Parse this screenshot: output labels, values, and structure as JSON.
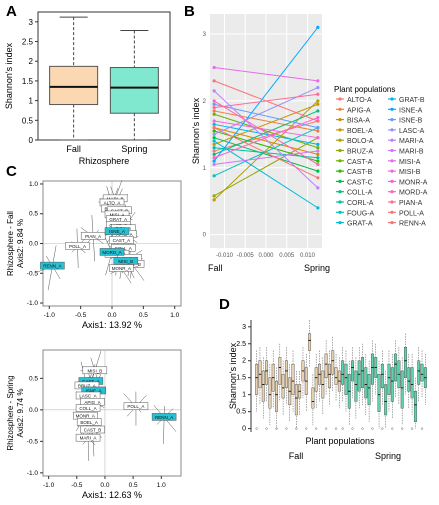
{
  "panels": {
    "A": "A",
    "B": "B",
    "C": "C",
    "D": "D"
  },
  "chart_data": [
    {
      "panel": "A",
      "type": "box",
      "xlabel": "Rhizosphere",
      "ylabel": "Shannon's index",
      "ylim": [
        0,
        3.25
      ],
      "yticks": [
        "0",
        "0.5",
        "1",
        "1.5",
        "2",
        "2.5",
        "3"
      ],
      "categories": [
        "Fall",
        "Spring"
      ],
      "boxes": [
        {
          "name": "Fall",
          "min": 0.0,
          "q1": 0.9,
          "median": 1.35,
          "q3": 1.87,
          "max": 3.12,
          "color": "#fbd8b2"
        },
        {
          "name": "Spring",
          "min": 0.0,
          "q1": 0.68,
          "median": 1.33,
          "q3": 1.84,
          "max": 2.78,
          "color": "#7fe8cf"
        }
      ]
    },
    {
      "panel": "B",
      "type": "line",
      "ylabel": "Shannon's index",
      "xlabel_left": "Fall",
      "xlabel_right": "Spring",
      "xticks": [
        "-0.010",
        "-0.005",
        "0.000",
        "0.005",
        "0.010"
      ],
      "yticks": [
        "0",
        "1",
        "2",
        "3"
      ],
      "xlim": [
        -0.0135,
        0.0135
      ],
      "ylim": [
        -0.2,
        3.3
      ],
      "legend_title": "Plant populations",
      "legend_placement": "right",
      "grid": true,
      "series": [
        {
          "name": "ALTO-A",
          "color": "#f8766d",
          "values": [
            1.25,
            1.7
          ]
        },
        {
          "name": "APIG-A",
          "color": "#ee7e3a",
          "values": [
            1.85,
            1.55
          ]
        },
        {
          "name": "BISA-A",
          "color": "#d98b00",
          "values": [
            1.6,
            1.2
          ]
        },
        {
          "name": "BOEL-A",
          "color": "#c79700",
          "values": [
            1.35,
            1.95
          ]
        },
        {
          "name": "BOLO-A",
          "color": "#b0a000",
          "values": [
            0.52,
            2.0
          ]
        },
        {
          "name": "BRUZ-A",
          "color": "#93a900",
          "values": [
            0.58,
            1.45
          ]
        },
        {
          "name": "CAST-A",
          "color": "#6db100",
          "values": [
            1.8,
            1.3
          ]
        },
        {
          "name": "CAST-B",
          "color": "#2bb800",
          "values": [
            1.55,
            1.1
          ]
        },
        {
          "name": "CAST-C",
          "color": "#00bb4e",
          "values": [
            1.45,
            0.95
          ]
        },
        {
          "name": "COLL-A",
          "color": "#00bf7d",
          "values": [
            1.2,
            1.85
          ]
        },
        {
          "name": "CORL-A",
          "color": "#00c0a0",
          "values": [
            1.3,
            1.15
          ]
        },
        {
          "name": "FOUG-A",
          "color": "#00c1be",
          "values": [
            0.88,
            1.6
          ]
        },
        {
          "name": "GRAT-A",
          "color": "#00bcd8",
          "values": [
            1.4,
            0.4
          ]
        },
        {
          "name": "GRAT-B",
          "color": "#00b5ee",
          "values": [
            1.65,
            1.35
          ]
        },
        {
          "name": "ISNE-A",
          "color": "#00a9ff",
          "values": [
            1.1,
            3.1
          ]
        },
        {
          "name": "ISNE-B",
          "color": "#619cff",
          "values": [
            1.95,
            1.6
          ]
        },
        {
          "name": "LASC-A",
          "color": "#9590ff",
          "values": [
            1.5,
            2.2
          ]
        },
        {
          "name": "MARI-A",
          "color": "#b983ff",
          "values": [
            2.15,
            0.7
          ]
        },
        {
          "name": "MARI-B",
          "color": "#d574fe",
          "values": [
            1.05,
            1.25
          ]
        },
        {
          "name": "MISI-A",
          "color": "#e86aee",
          "values": [
            2.5,
            2.3
          ]
        },
        {
          "name": "MISI-B",
          "color": "#f564e3",
          "values": [
            1.7,
            1.45
          ]
        },
        {
          "name": "MONR-A",
          "color": "#fd61d1",
          "values": [
            1.15,
            1.75
          ]
        },
        {
          "name": "MORD-A",
          "color": "#ff64b7",
          "values": [
            2.0,
            1.05
          ]
        },
        {
          "name": "PIAN-A",
          "color": "#ff6c99",
          "values": [
            1.9,
            2.1
          ]
        },
        {
          "name": "POLL-A",
          "color": "#fd7279",
          "values": [
            2.3,
            1.7
          ]
        },
        {
          "name": "RENN-A",
          "color": "#f77570",
          "values": [
            1.6,
            0.85
          ]
        }
      ]
    },
    {
      "panel": "C-fall",
      "type": "scatter",
      "title": "Rhizosphere - Fall",
      "xlabel": "Axis1: 13.92 %",
      "ylabel": "Axis2: 9.84 %",
      "xlim": [
        -1.1,
        1.1
      ],
      "ylim": [
        -1.05,
        1.05
      ],
      "xticks": [
        "-1.0",
        "-0.5",
        "0.0",
        "0.5",
        "1.0"
      ],
      "yticks": [
        "-1.0",
        "-0.5",
        "0.0",
        "0.5",
        "1.0"
      ],
      "points": [
        {
          "label": "MARI_B",
          "x": 0.05,
          "y": 0.75
        },
        {
          "label": "ALTO_A",
          "x": 0.0,
          "y": 0.68
        },
        {
          "label": "BOEL_A",
          "x": 0.02,
          "y": 0.58
        },
        {
          "label": "CAST_B",
          "x": 0.12,
          "y": 0.55
        },
        {
          "label": "MISI_A",
          "x": 0.08,
          "y": 0.48
        },
        {
          "label": "GRAT_A",
          "x": 0.1,
          "y": 0.4
        },
        {
          "label": "CAST_C",
          "x": 0.1,
          "y": 0.3
        },
        {
          "label": "BISA_A",
          "x": 0.18,
          "y": 0.25
        },
        {
          "label": "APIG_A",
          "x": 0.2,
          "y": 0.15
        },
        {
          "label": "PIAN_A",
          "x": -0.3,
          "y": 0.12
        },
        {
          "label": "POLL_A",
          "x": -0.55,
          "y": -0.05
        },
        {
          "label": "CAST_A",
          "x": 0.15,
          "y": 0.05
        },
        {
          "label": "COLL_A",
          "x": 0.18,
          "y": -0.08
        },
        {
          "label": "BRUZ_A",
          "x": 0.08,
          "y": -0.18
        },
        {
          "label": "ISNE_B",
          "x": 0.28,
          "y": -0.25
        },
        {
          "label": "GRAT_B",
          "x": 0.32,
          "y": -0.35
        },
        {
          "label": "MONR_A",
          "x": 0.15,
          "y": -0.42
        },
        {
          "label": "RENN_A",
          "x": -0.95,
          "y": -0.38,
          "highlight": true
        },
        {
          "label": "ISNE_A",
          "x": 0.08,
          "y": 0.2,
          "highlight": true
        },
        {
          "label": "MISI_B",
          "x": 0.22,
          "y": -0.3,
          "highlight": true
        },
        {
          "label": "MORD_A",
          "x": 0.0,
          "y": -0.15,
          "highlight": true
        }
      ]
    },
    {
      "panel": "C-spring",
      "type": "scatter",
      "title": "Rhizosphere - Spring",
      "xlabel": "Axis1: 12.63 %",
      "ylabel": "Axis2: 9.74 %",
      "xlim": [
        -1.1,
        1.35
      ],
      "ylim": [
        -1.05,
        0.95
      ],
      "xticks": [
        "-1.0",
        "-0.5",
        "0.0",
        "0.5",
        "1.0"
      ],
      "yticks": [
        "-1.0",
        "-0.5",
        "0.0",
        "0.5"
      ],
      "points": [
        {
          "label": "MISI_B",
          "x": -0.18,
          "y": 0.62
        },
        {
          "label": "CAST_A",
          "x": -0.25,
          "y": 0.45,
          "highlight": true
        },
        {
          "label": "BRUZ_A",
          "x": -0.32,
          "y": 0.38
        },
        {
          "label": "ISNE_A",
          "x": -0.2,
          "y": 0.3,
          "highlight": true
        },
        {
          "label": "LASC_A",
          "x": -0.3,
          "y": 0.22
        },
        {
          "label": "APIG_A",
          "x": -0.22,
          "y": 0.12
        },
        {
          "label": "COLL_A",
          "x": -0.3,
          "y": 0.02
        },
        {
          "label": "MONR_A",
          "x": -0.35,
          "y": -0.1
        },
        {
          "label": "BOEL_A",
          "x": -0.28,
          "y": -0.2
        },
        {
          "label": "CAST_B",
          "x": -0.22,
          "y": -0.32
        },
        {
          "label": "MARI_A",
          "x": -0.3,
          "y": -0.45
        },
        {
          "label": "POLL_A",
          "x": 0.55,
          "y": 0.05
        },
        {
          "label": "RENN_A",
          "x": 1.05,
          "y": -0.12,
          "highlight": true
        }
      ]
    },
    {
      "panel": "D",
      "type": "box",
      "ylabel": "Shannon's index",
      "xlabel": "Plant populations",
      "group_labels": [
        "Fall",
        "Spring"
      ],
      "ylim": [
        -0.1,
        3.2
      ],
      "yticks": [
        "0",
        "0.5",
        "1",
        "1.5",
        "2",
        "2.5",
        "3"
      ],
      "groups": [
        {
          "name": "Fall",
          "color": "#e8d1b1",
          "boxes": [
            [
              1.0,
              1.5,
              1.9
            ],
            [
              1.2,
              1.6,
              2.0
            ],
            [
              0.8,
              1.3,
              1.7
            ],
            [
              1.3,
              1.7,
              2.0
            ],
            [
              0.6,
              1.0,
              1.5
            ],
            [
              1.1,
              1.5,
              1.9
            ],
            [
              0.5,
              1.0,
              1.4
            ],
            [
              1.3,
              1.8,
              2.1
            ],
            [
              0.9,
              1.2,
              1.6
            ],
            [
              1.2,
              1.7,
              2.0
            ],
            [
              0.7,
              1.1,
              1.5
            ],
            [
              1.0,
              1.4,
              1.9
            ],
            [
              0.4,
              0.9,
              1.3
            ],
            [
              0.9,
              1.1,
              1.3
            ],
            [
              1.4,
              1.7,
              2.0
            ],
            [
              1.0,
              1.4,
              1.8
            ],
            [
              2.3,
              2.6,
              2.8
            ],
            [
              0.6,
              0.8,
              1.2
            ],
            [
              1.1,
              1.5,
              1.8
            ],
            [
              1.3,
              1.6,
              1.9
            ],
            [
              0.9,
              1.3,
              1.7
            ],
            [
              1.5,
              1.9,
              2.2
            ],
            [
              1.2,
              1.6,
              1.9
            ],
            [
              1.6,
              2.0,
              2.3
            ],
            [
              1.3,
              1.5,
              1.8
            ],
            [
              1.1,
              1.4,
              1.7
            ]
          ]
        },
        {
          "name": "Spring",
          "color": "#5dd3ad",
          "boxes": [
            [
              1.3,
              1.6,
              2.0
            ],
            [
              1.0,
              1.5,
              1.9
            ],
            [
              0.6,
              1.1,
              1.6
            ],
            [
              1.4,
              1.8,
              2.0
            ],
            [
              0.8,
              1.3,
              1.7
            ],
            [
              1.1,
              1.6,
              2.0
            ],
            [
              1.2,
              1.7,
              2.1
            ],
            [
              0.9,
              1.3,
              1.8
            ],
            [
              0.7,
              1.2,
              1.6
            ],
            [
              1.3,
              1.8,
              2.2
            ],
            [
              1.5,
              1.8,
              2.1
            ],
            [
              0.5,
              1.0,
              1.6
            ],
            [
              1.2,
              1.6,
              1.9
            ],
            [
              0.4,
              0.8,
              1.3
            ],
            [
              1.0,
              1.5,
              1.9
            ],
            [
              0.8,
              1.4,
              1.8
            ],
            [
              1.4,
              1.9,
              2.2
            ],
            [
              1.2,
              1.6,
              2.0
            ],
            [
              0.6,
              1.2,
              1.7
            ],
            [
              1.5,
              2.0,
              2.4
            ],
            [
              1.1,
              1.4,
              1.8
            ],
            [
              0.9,
              1.3,
              1.8
            ],
            [
              0.2,
              0.7,
              1.1
            ],
            [
              1.3,
              1.7,
              2.0
            ],
            [
              1.4,
              1.6,
              1.9
            ],
            [
              1.2,
              1.5,
              1.8
            ]
          ]
        }
      ]
    }
  ]
}
